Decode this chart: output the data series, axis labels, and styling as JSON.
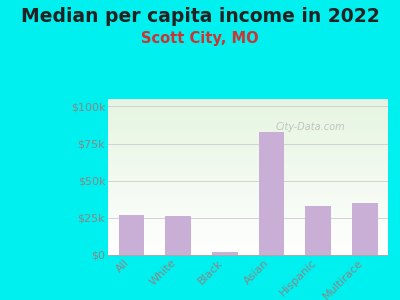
{
  "title": "Median per capita income in 2022",
  "subtitle": "Scott City, MO",
  "categories": [
    "All",
    "White",
    "Black",
    "Asian",
    "Hispanic",
    "Multirace"
  ],
  "values": [
    27000,
    26000,
    2000,
    83000,
    33000,
    35000
  ],
  "bar_color": "#c9aed6",
  "background_color": "#00EFEF",
  "plot_bg_topleft": "#e8f5e2",
  "plot_bg_topright": "#e0f0f8",
  "plot_bg_bottom": "#ffffff",
  "title_color": "#222222",
  "subtitle_color": "#cc3333",
  "tick_label_color": "#888888",
  "yticks": [
    0,
    25000,
    50000,
    75000,
    100000
  ],
  "ytick_labels": [
    "$0",
    "$25k",
    "$50k",
    "$75k",
    "$100k"
  ],
  "ylim": [
    0,
    105000
  ],
  "watermark": "City-Data.com",
  "title_fontsize": 13.5,
  "subtitle_fontsize": 10.5,
  "tick_fontsize": 8
}
